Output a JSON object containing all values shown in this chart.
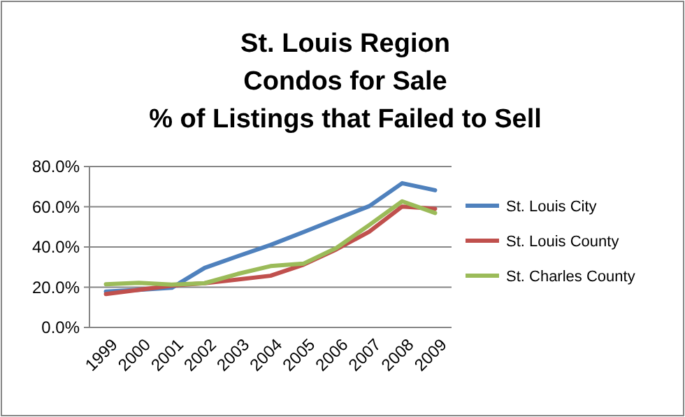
{
  "chart_data": {
    "type": "line",
    "title": "St. Louis Region\nCondos for Sale\n% of Listings that Failed to Sell",
    "categories": [
      "1999",
      "2000",
      "2001",
      "2002",
      "2003",
      "2004",
      "2005",
      "2006",
      "2007",
      "2008",
      "2009"
    ],
    "series": [
      {
        "name": "St. Louis City",
        "color": "#4f81bd",
        "values": [
          17.8,
          18.7,
          19.7,
          29.6,
          35.4,
          41,
          47.4,
          53.9,
          60.3,
          71.7,
          68.2
        ]
      },
      {
        "name": "St. Louis County",
        "color": "#c0504d",
        "values": [
          16.6,
          18.7,
          20.8,
          22,
          23.8,
          25.7,
          31.2,
          38.8,
          47.6,
          60.1,
          59
        ]
      },
      {
        "name": "St. Charles County",
        "color": "#9bbb59",
        "values": [
          21.5,
          22.2,
          21.3,
          22,
          26.6,
          30.5,
          31.7,
          39.5,
          50.9,
          62.7,
          56.9
        ]
      }
    ],
    "ylim": [
      0,
      80
    ],
    "yticks": [
      {
        "value": 0,
        "label": "0.0%"
      },
      {
        "value": 20,
        "label": "20.0%"
      },
      {
        "value": 40,
        "label": "40.0%"
      },
      {
        "value": 60,
        "label": "60.0%"
      },
      {
        "value": 80,
        "label": "80.0%"
      }
    ],
    "grid": "y",
    "legend": "right",
    "marker": "none",
    "line_style": "solid"
  }
}
